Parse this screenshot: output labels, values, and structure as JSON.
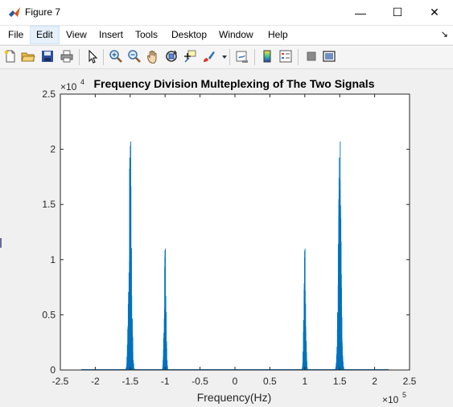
{
  "window": {
    "title": "Figure 7",
    "minimize_glyph": "—",
    "maximize_glyph": "☐",
    "close_glyph": "✕"
  },
  "menu": {
    "items": [
      "File",
      "Edit",
      "View",
      "Insert",
      "Tools",
      "Desktop",
      "Window",
      "Help"
    ],
    "active": "Edit",
    "dock_glyph": "↘"
  },
  "toolbar": {
    "icons": [
      "new-figure-icon",
      "open-file-icon",
      "save-icon",
      "print-icon",
      "select-arrow-icon",
      "zoom-in-icon",
      "zoom-out-icon",
      "pan-hand-icon",
      "rotate-3d-icon",
      "data-cursor-icon",
      "brush-icon",
      "link-plot-icon",
      "colorbar-icon",
      "legend-icon",
      "hide-plot-tools-icon",
      "show-plot-tools-icon"
    ]
  },
  "colors": {
    "line": "#0072bd",
    "axes_bg": "#ffffff",
    "figure_bg": "#f0f0f0"
  },
  "chart_data": {
    "type": "line",
    "title": "Frequency Division Multeplexing of The Two Signals",
    "xlabel": "Frequency(Hz)",
    "ylabel": "",
    "xlim": [
      -2.5,
      2.5
    ],
    "ylim": [
      0,
      2.5
    ],
    "x_exponent_label": "×10",
    "x_exponent": "5",
    "y_exponent_label": "×10",
    "y_exponent": "4",
    "xticks": [
      "-2.5",
      "-2",
      "-1.5",
      "-1",
      "-0.5",
      "0",
      "0.5",
      "1",
      "1.5",
      "2",
      "2.5"
    ],
    "yticks": [
      "0",
      "0.5",
      "1",
      "1.5",
      "2",
      "2.5"
    ],
    "x_data_range": [
      -2.2,
      2.2
    ],
    "grid": false,
    "peaks": [
      {
        "center": -1.5,
        "max": 2.07
      },
      {
        "center": -1.0,
        "max": 1.1
      },
      {
        "center": 1.0,
        "max": 1.1
      },
      {
        "center": 1.5,
        "max": 2.07
      }
    ]
  }
}
